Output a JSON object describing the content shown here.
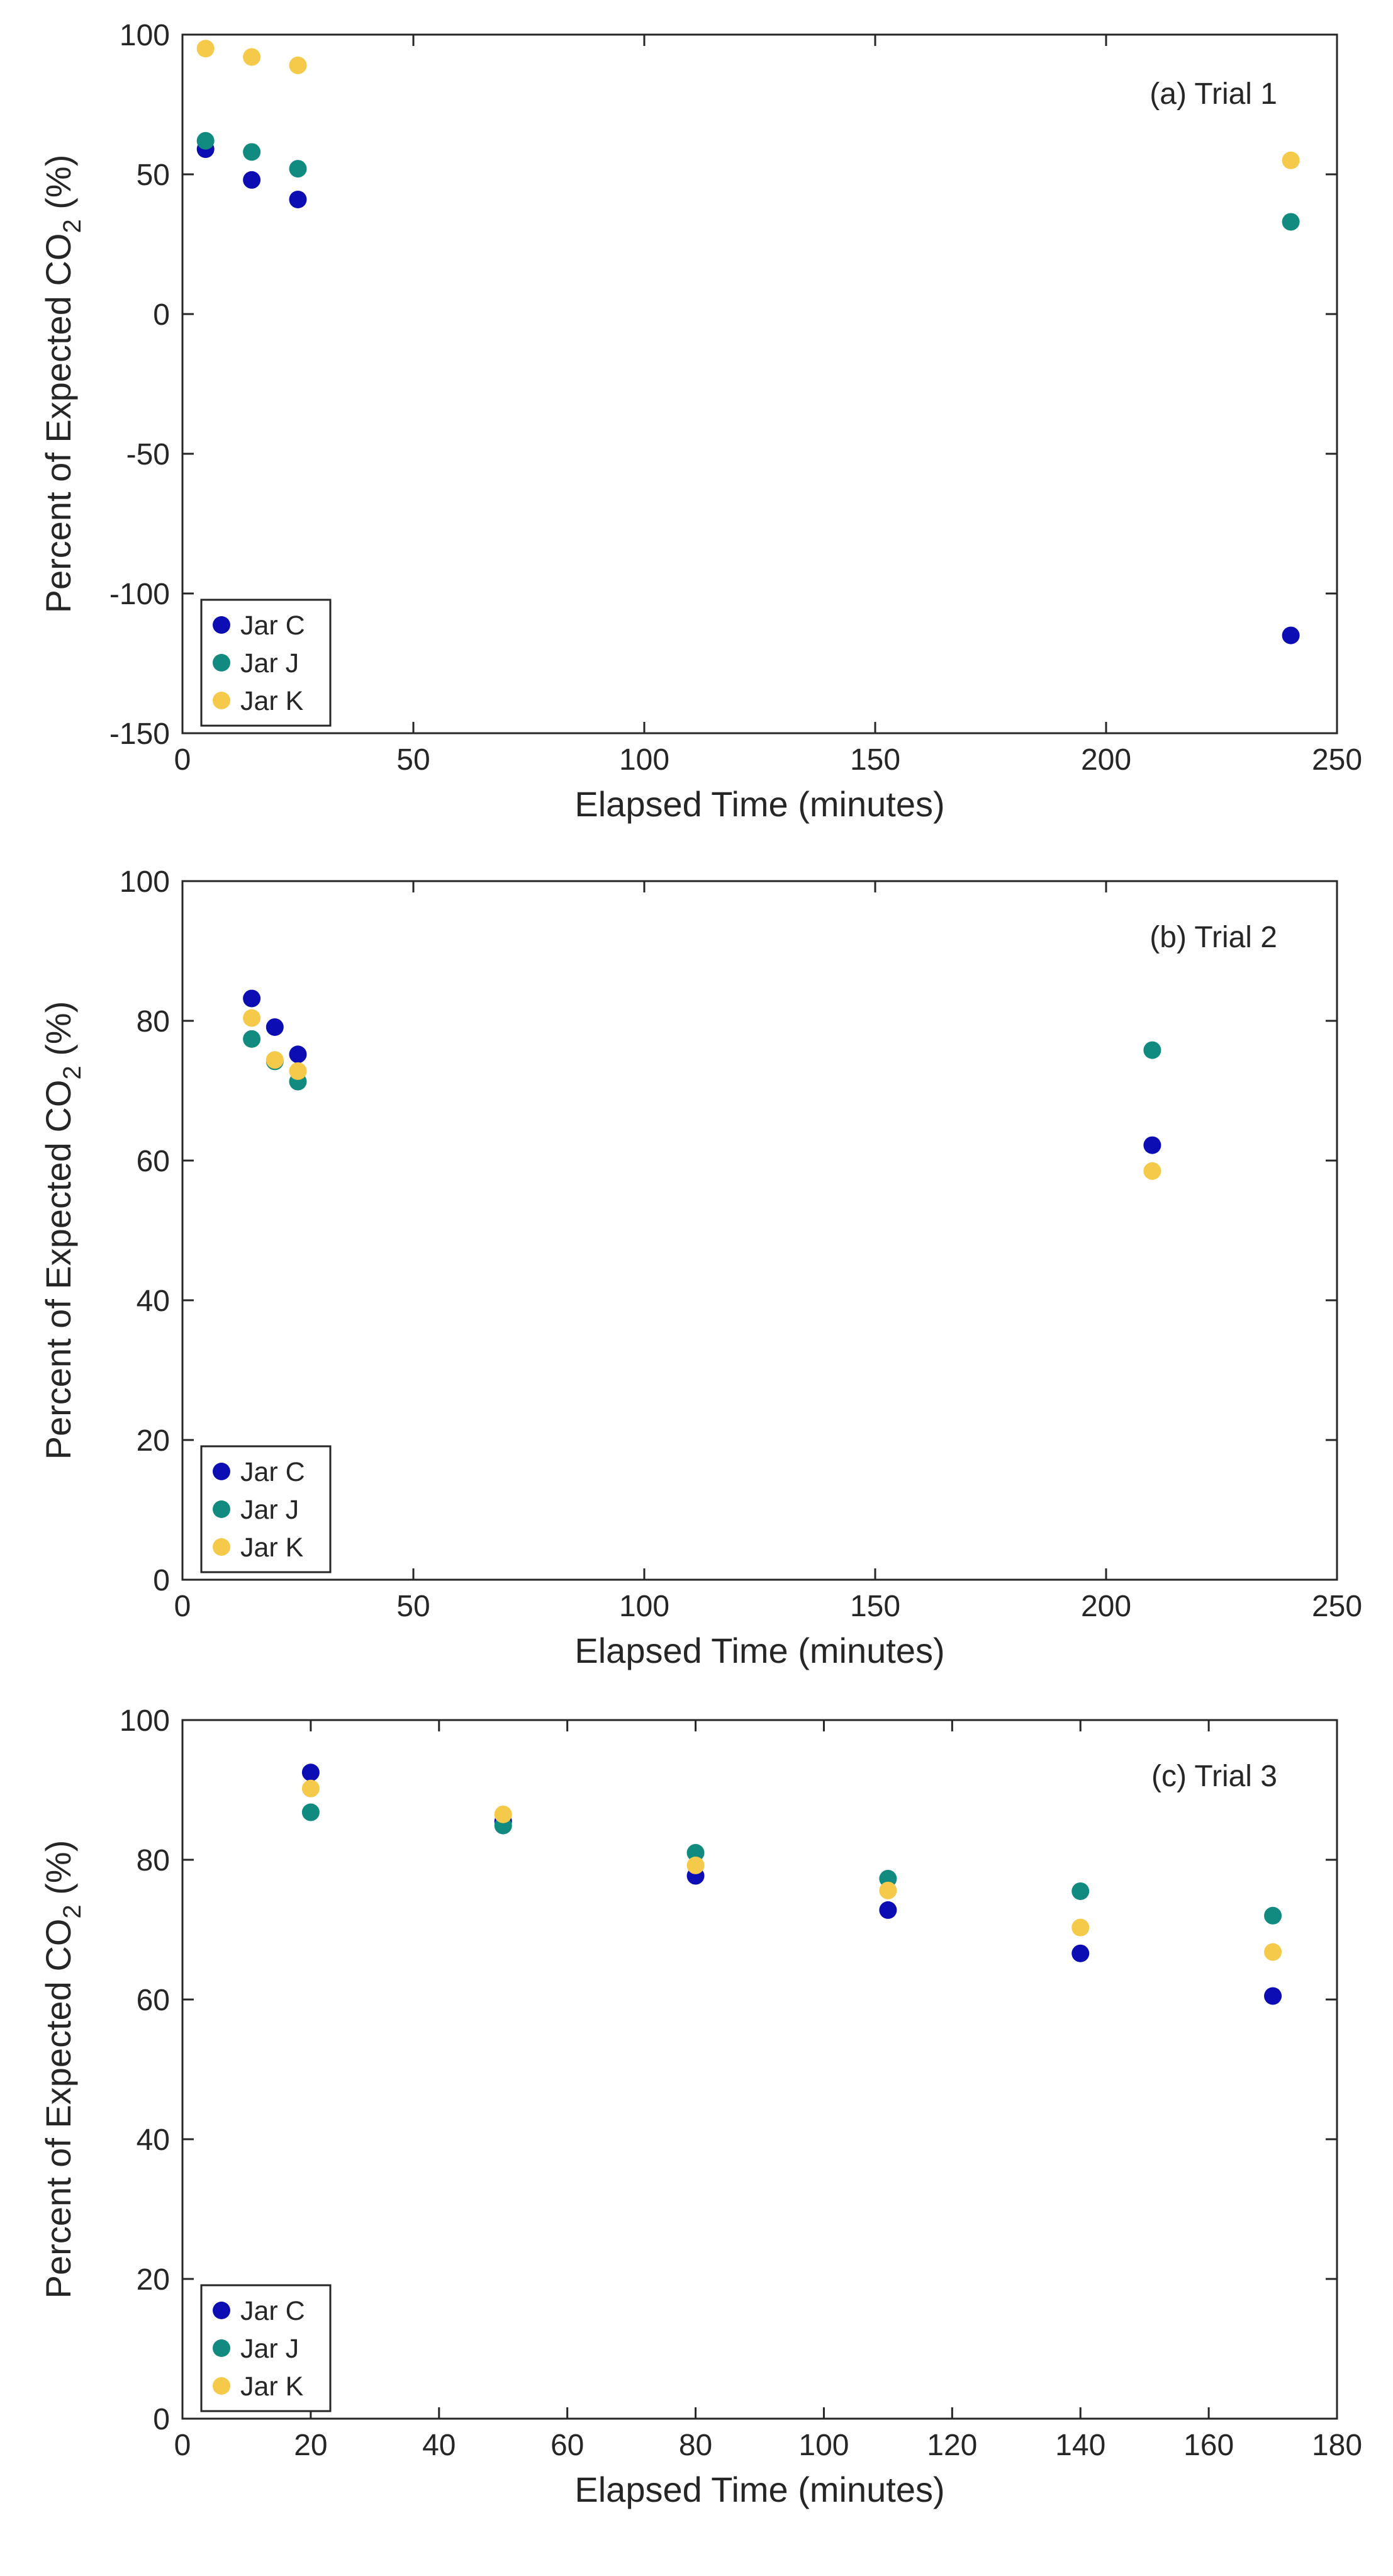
{
  "chart_data": [
    {
      "type": "scatter",
      "panel_label": "(a) Trial 1",
      "xlabel": "Elapsed Time (minutes)",
      "ylabel": {
        "main": "Percent of Expected CO",
        "subscript": "2",
        "suffix": " (%)"
      },
      "xlim": [
        0,
        250
      ],
      "ylim": [
        -150,
        100
      ],
      "xticks": [
        0,
        50,
        100,
        150,
        200,
        250
      ],
      "yticks": [
        -150,
        -100,
        -50,
        0,
        50,
        100
      ],
      "legend_position": "bottom-left",
      "series": [
        {
          "name": "Jar C",
          "color": "#0d0db4",
          "x": [
            5,
            15,
            25,
            240
          ],
          "y": [
            59,
            48,
            41,
            -115
          ]
        },
        {
          "name": "Jar J",
          "color": "#118a80",
          "x": [
            5,
            15,
            25,
            240
          ],
          "y": [
            62,
            58,
            52,
            33
          ]
        },
        {
          "name": "Jar K",
          "color": "#f5c94a",
          "x": [
            5,
            15,
            25,
            240
          ],
          "y": [
            95,
            92,
            89,
            55
          ]
        }
      ]
    },
    {
      "type": "scatter",
      "panel_label": "(b) Trial 2",
      "xlabel": "Elapsed Time (minutes)",
      "ylabel": {
        "main": "Percent of Expected CO",
        "subscript": "2",
        "suffix": " (%)"
      },
      "xlim": [
        0,
        250
      ],
      "ylim": [
        0,
        100
      ],
      "xticks": [
        0,
        50,
        100,
        150,
        200,
        250
      ],
      "yticks": [
        0,
        20,
        40,
        60,
        80,
        100
      ],
      "legend_position": "bottom-left",
      "series": [
        {
          "name": "Jar C",
          "color": "#0d0db4",
          "x": [
            15,
            20,
            25,
            210
          ],
          "y": [
            83.2,
            79.1,
            75.2,
            62.2
          ]
        },
        {
          "name": "Jar J",
          "color": "#118a80",
          "x": [
            15,
            20,
            25,
            210
          ],
          "y": [
            77.4,
            74.2,
            71.3,
            75.8
          ]
        },
        {
          "name": "Jar K",
          "color": "#f5c94a",
          "x": [
            15,
            20,
            25,
            210
          ],
          "y": [
            80.4,
            74.4,
            72.8,
            58.5
          ]
        }
      ]
    },
    {
      "type": "scatter",
      "panel_label": "(c) Trial 3",
      "xlabel": "Elapsed Time (minutes)",
      "ylabel": {
        "main": "Percent of Expected CO",
        "subscript": "2",
        "suffix": " (%)"
      },
      "xlim": [
        0,
        180
      ],
      "ylim": [
        0,
        100
      ],
      "xticks": [
        0,
        20,
        40,
        60,
        80,
        100,
        120,
        140,
        160,
        180
      ],
      "yticks": [
        0,
        20,
        40,
        60,
        80,
        100
      ],
      "legend_position": "bottom-left",
      "series": [
        {
          "name": "Jar C",
          "color": "#0d0db4",
          "x": [
            20,
            50,
            80,
            110,
            140,
            170
          ],
          "y": [
            92.5,
            85.5,
            77.7,
            72.8,
            66.6,
            60.5
          ]
        },
        {
          "name": "Jar J",
          "color": "#118a80",
          "x": [
            20,
            50,
            80,
            110,
            140,
            170
          ],
          "y": [
            86.8,
            84.9,
            81.0,
            77.3,
            75.5,
            72.0
          ]
        },
        {
          "name": "Jar K",
          "color": "#f5c94a",
          "x": [
            20,
            50,
            80,
            110,
            140,
            170
          ],
          "y": [
            90.2,
            86.5,
            79.2,
            75.6,
            70.3,
            66.8
          ]
        }
      ]
    }
  ]
}
